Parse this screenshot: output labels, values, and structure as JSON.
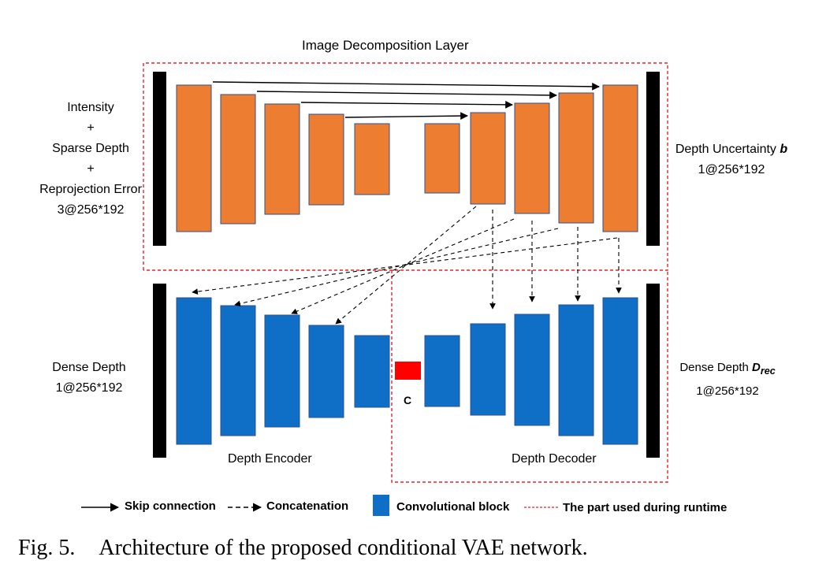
{
  "diagram": {
    "top_title": "Image Decomposition Layer",
    "input_labels": [
      "Intensity",
      "+",
      "Sparse Depth",
      "+",
      "Reprojection Error",
      "3@256*192"
    ],
    "uncertainty_label": {
      "prefix": "Depth Uncertainty ",
      "symbol": "b",
      "size": "1@256*192"
    },
    "dense_depth_label": [
      "Dense Depth",
      "1@256*192"
    ],
    "dense_rec_label": {
      "prefix": "Dense Depth ",
      "symbol": "D",
      "subscript": "rec",
      "size": "1@256*192"
    },
    "encoder_label": "Depth Encoder",
    "decoder_label": "Depth Decoder",
    "c_label": "C",
    "colors": {
      "orange_block": "#ed7d31",
      "blue_block": "#0f6fc6",
      "red_block": "#ff0000",
      "runtime_border": "#e8242c",
      "black_bar": "#000000"
    }
  },
  "legend": {
    "skip": "Skip connection",
    "concat": "Concatenation",
    "conv": "Convolutional block",
    "runtime": "The part used during runtime"
  },
  "caption": {
    "number": "Fig. 5.",
    "text": "Architecture of the proposed conditional VAE network."
  }
}
